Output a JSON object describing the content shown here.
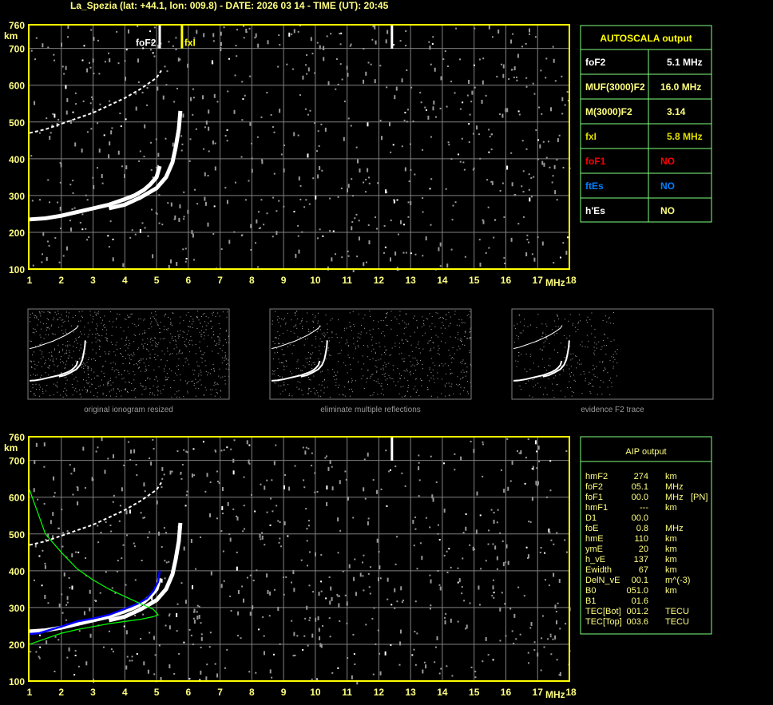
{
  "header": {
    "title": "La_Spezia (lat: +44.1, lon: 009.8) - DATE: 2026 03 14 - TIME (UT): 20:45"
  },
  "colors": {
    "axis": "#ffff00",
    "grid": "#808080",
    "trace": "#ffffff",
    "noise": "#9a9a9a",
    "aip_fit": "#0000ff",
    "profile": "#00ff00",
    "table_border": "#80ff80",
    "foF1": "#ff0000",
    "ftEs": "#0080ff",
    "fxI": "#e0e000"
  },
  "chart_data": [
    {
      "type": "scatter",
      "title": "",
      "xlabel": "MHz",
      "ylabel": "km",
      "xlim": [
        1,
        18
      ],
      "ylim": [
        100,
        760
      ],
      "x_ticks": [
        "1",
        "2",
        "3",
        "4",
        "5",
        "6",
        "7",
        "8",
        "9",
        "10",
        "11",
        "12",
        "13",
        "14",
        "15",
        "16",
        "17",
        "18"
      ],
      "y_ticks": [
        "760",
        "700",
        "600",
        "500",
        "400",
        "300",
        "200",
        "100"
      ],
      "grid": true,
      "markers": [
        {
          "label": "foF2",
          "x": 5.1,
          "color": "#ffffff"
        },
        {
          "label": "fxI",
          "x": 5.8,
          "color": "#ffff00"
        }
      ],
      "series": [
        {
          "x": [
            1.0,
            1.5,
            2.0,
            2.5,
            3.0,
            3.5,
            4.0,
            4.3,
            4.6,
            4.8,
            5.0,
            5.1
          ],
          "y": [
            235,
            238,
            245,
            255,
            265,
            275,
            290,
            300,
            315,
            330,
            350,
            380
          ]
        },
        {
          "x": [
            3.5,
            4.0,
            4.5,
            5.0,
            5.3,
            5.5,
            5.6,
            5.7,
            5.75
          ],
          "y": [
            265,
            275,
            295,
            320,
            350,
            390,
            430,
            480,
            530
          ]
        },
        {
          "x": [
            1.0,
            1.5,
            2.0,
            2.5,
            3.0,
            3.5,
            4.0,
            4.5,
            5.0,
            5.15
          ],
          "y": [
            470,
            480,
            495,
            510,
            525,
            545,
            565,
            590,
            620,
            640
          ]
        }
      ]
    },
    {
      "type": "scatter",
      "title": "",
      "xlabel": "MHz",
      "ylabel": "km",
      "xlim": [
        1,
        18
      ],
      "ylim": [
        100,
        760
      ],
      "grid": true,
      "series": [
        {
          "x": [
            1.0,
            1.5,
            2.0,
            2.5,
            3.0,
            3.5,
            4.0,
            4.3,
            4.6,
            4.8,
            5.0,
            5.1
          ],
          "y": [
            235,
            238,
            245,
            255,
            265,
            275,
            290,
            300,
            315,
            330,
            350,
            380
          ]
        },
        {
          "x": [
            3.5,
            4.0,
            4.5,
            5.0,
            5.3,
            5.5,
            5.6,
            5.7,
            5.75
          ],
          "y": [
            265,
            275,
            295,
            320,
            350,
            390,
            430,
            480,
            530
          ]
        },
        {
          "x": [
            1.0,
            1.5,
            2.0,
            2.5,
            3.0,
            3.5,
            4.0,
            4.5,
            5.0,
            5.15
          ],
          "y": [
            470,
            480,
            495,
            510,
            525,
            545,
            565,
            590,
            620,
            640
          ]
        },
        {
          "name": "",
          "color": "#0000ff",
          "x": [
            1.0,
            1.3,
            1.6,
            2.0,
            2.5,
            3.0,
            3.5,
            4.0,
            4.4,
            4.7,
            4.9,
            5.05,
            5.1
          ],
          "y": [
            228,
            230,
            238,
            248,
            262,
            270,
            280,
            296,
            310,
            325,
            345,
            370,
            400
          ]
        },
        {
          "name": "",
          "color": "#00ff00",
          "x": [
            1.0,
            1.5,
            2.0,
            2.5,
            3.0,
            3.5,
            4.0,
            4.5,
            4.9,
            5.05,
            4.9,
            4.5,
            4.0,
            3.5,
            3.0,
            2.5,
            2.0,
            1.5,
            1.0
          ],
          "y": [
            620,
            500,
            450,
            405,
            375,
            350,
            330,
            310,
            295,
            280,
            275,
            268,
            262,
            256,
            248,
            240,
            230,
            215,
            200
          ]
        }
      ]
    }
  ],
  "autoscala": {
    "title": "AUTOSCALA output",
    "rows": [
      {
        "label": "foF2",
        "value": "5.1 MHz"
      },
      {
        "label": "MUF(3000)F2",
        "value": "16.0 MHz"
      },
      {
        "label": "M(3000)F2",
        "value": "3.14"
      },
      {
        "label": "fxI",
        "value": "5.8 MHz"
      },
      {
        "label": "foF1",
        "value": "NO"
      },
      {
        "label": "ftEs",
        "value": "NO"
      },
      {
        "label": "h'Es",
        "value": "NO"
      }
    ]
  },
  "thumbnails": [
    {
      "caption": "original ionogram resized"
    },
    {
      "caption": "eliminate multiple reflections"
    },
    {
      "caption": "evidence F2 trace"
    }
  ],
  "aip": {
    "title": "AIP output",
    "rows": [
      {
        "name": "hmF2",
        "value": "274",
        "unit": "km",
        "extra": ""
      },
      {
        "name": "foF2",
        "value": "05.1",
        "unit": "MHz",
        "extra": ""
      },
      {
        "name": "foF1",
        "value": "00.0",
        "unit": "MHz",
        "extra": "[PN]"
      },
      {
        "name": "hmF1",
        "value": "---",
        "unit": "km",
        "extra": ""
      },
      {
        "name": "D1",
        "value": "00.0",
        "unit": "",
        "extra": ""
      },
      {
        "name": "foE",
        "value": "0.8",
        "unit": "MHz",
        "extra": ""
      },
      {
        "name": "hmE",
        "value": "110",
        "unit": "km",
        "extra": ""
      },
      {
        "name": "ymE",
        "value": "20",
        "unit": "km",
        "extra": ""
      },
      {
        "name": "h_vE",
        "value": "137",
        "unit": "km",
        "extra": ""
      },
      {
        "name": "Ewidth",
        "value": "67",
        "unit": "km",
        "extra": ""
      },
      {
        "name": "DelN_vE",
        "value": "00.1",
        "unit": "m^(-3)",
        "extra": ""
      },
      {
        "name": "B0",
        "value": "051.0",
        "unit": "km",
        "extra": ""
      },
      {
        "name": "B1",
        "value": "01.6",
        "unit": "",
        "extra": ""
      },
      {
        "name": "TEC[Bot]",
        "value": "001.2",
        "unit": "TECU",
        "extra": ""
      },
      {
        "name": "TEC[Top]",
        "value": "003.6",
        "unit": "TECU",
        "extra": ""
      }
    ]
  }
}
